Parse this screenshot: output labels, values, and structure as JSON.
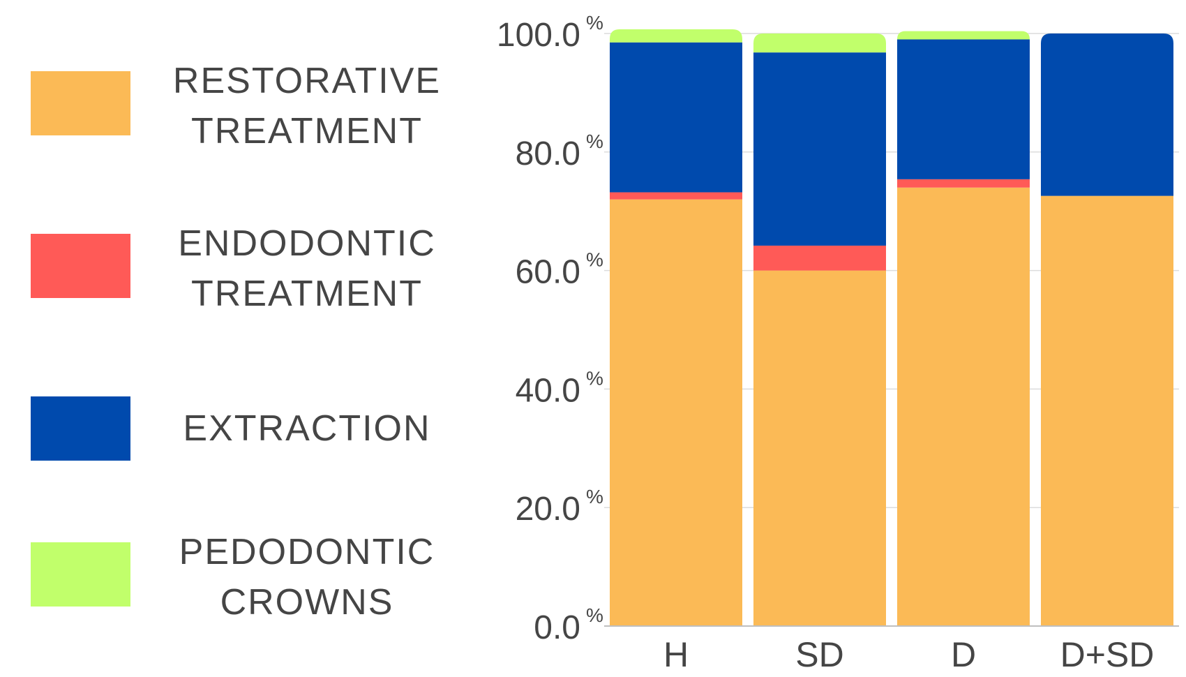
{
  "legend": {
    "items": [
      {
        "label": "RESTORATIVE\nTREATMENT",
        "color": "#FBBA56"
      },
      {
        "label": "ENDODONTIC\nTREATMENT",
        "color": "#FF5A57"
      },
      {
        "label": "EXTRACTION",
        "color": "#004AAD"
      },
      {
        "label": "PEDODONTIC\nCROWNS",
        "color": "#C1FF6B"
      }
    ]
  },
  "chart_data": {
    "type": "bar",
    "stacked": true,
    "title": "",
    "xlabel": "",
    "ylabel": "",
    "ylim": [
      0,
      100
    ],
    "y_ticks": [
      {
        "value": 0,
        "label": "0.0",
        "unit": "%"
      },
      {
        "value": 20,
        "label": "20.0",
        "unit": "%"
      },
      {
        "value": 40,
        "label": "40.0",
        "unit": "%"
      },
      {
        "value": 60,
        "label": "60.0",
        "unit": "%"
      },
      {
        "value": 80,
        "label": "80.0",
        "unit": "%"
      },
      {
        "value": 100,
        "label": "100.0",
        "unit": "%"
      }
    ],
    "grid": true,
    "legend_position": "left",
    "categories": [
      "H",
      "SD",
      "D",
      "D+SD"
    ],
    "series": [
      {
        "name": "RESTORATIVE TREATMENT",
        "color": "#FBBA56",
        "values": [
          72.0,
          60.0,
          74.0,
          72.6
        ]
      },
      {
        "name": "ENDODONTIC TREATMENT",
        "color": "#FF5A57",
        "values": [
          1.2,
          4.2,
          1.4,
          0.0
        ]
      },
      {
        "name": "EXTRACTION",
        "color": "#004AAD",
        "values": [
          25.3,
          32.6,
          23.6,
          27.4
        ]
      },
      {
        "name": "PEDODONTIC CROWNS",
        "color": "#C1FF6B",
        "values": [
          2.2,
          3.2,
          1.4,
          0.0
        ]
      }
    ]
  }
}
